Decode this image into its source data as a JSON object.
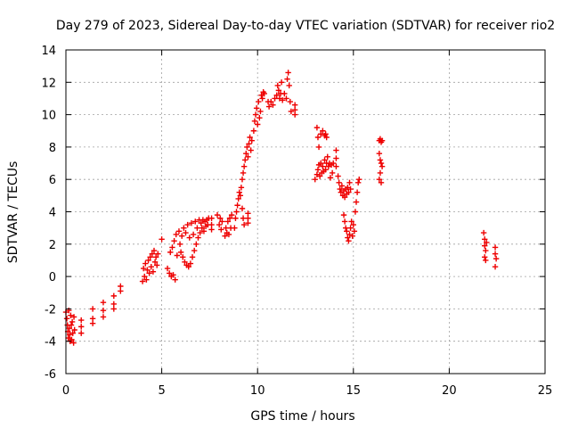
{
  "chart_data": {
    "type": "scatter",
    "title": "Day 279 of 2023, Sidereal Day-to-day VTEC variation (SDTVAR) for receiver rio2",
    "xlabel": "GPS time / hours",
    "ylabel": "SDTVAR / TECUs",
    "xlim": [
      0,
      25
    ],
    "ylim": [
      -6,
      14
    ],
    "xticks": [
      0,
      5,
      10,
      15,
      20,
      25
    ],
    "xtick_labels": [
      "0",
      "5",
      "10",
      "15",
      "20",
      "25"
    ],
    "yticks": [
      -6,
      -4,
      -2,
      0,
      2,
      4,
      6,
      8,
      10,
      12,
      14
    ],
    "ytick_labels": [
      "-6",
      "-4",
      "-2",
      "0",
      "2",
      "4",
      "6",
      "8",
      "10",
      "12",
      "14"
    ],
    "grid": true,
    "marker": "+",
    "color": "#ee0000",
    "series": [
      {
        "name": "rio2",
        "points": [
          [
            0.0,
            -2.2
          ],
          [
            0.05,
            -2.6
          ],
          [
            0.08,
            -3.0
          ],
          [
            0.1,
            -3.4
          ],
          [
            0.12,
            -3.8
          ],
          [
            0.15,
            -2.1
          ],
          [
            0.18,
            -3.2
          ],
          [
            0.2,
            -3.6
          ],
          [
            0.22,
            -4.0
          ],
          [
            0.25,
            -2.4
          ],
          [
            0.28,
            -3.0
          ],
          [
            0.3,
            -3.9
          ],
          [
            0.33,
            -2.8
          ],
          [
            0.36,
            -3.5
          ],
          [
            0.4,
            -4.1
          ],
          [
            0.42,
            -2.5
          ],
          [
            0.45,
            -3.3
          ],
          [
            0.8,
            -2.7
          ],
          [
            0.8,
            -3.1
          ],
          [
            0.8,
            -3.5
          ],
          [
            1.4,
            -2.0
          ],
          [
            1.4,
            -2.6
          ],
          [
            1.4,
            -2.9
          ],
          [
            1.95,
            -1.6
          ],
          [
            1.95,
            -2.1
          ],
          [
            1.95,
            -2.5
          ],
          [
            2.5,
            -1.2
          ],
          [
            2.5,
            -1.7
          ],
          [
            2.5,
            -2.0
          ],
          [
            2.85,
            -0.6
          ],
          [
            2.85,
            -0.9
          ],
          [
            4.0,
            -0.3
          ],
          [
            4.05,
            0.5
          ],
          [
            4.1,
            0.0
          ],
          [
            4.15,
            0.8
          ],
          [
            4.2,
            -0.2
          ],
          [
            4.25,
            0.4
          ],
          [
            4.3,
            1.0
          ],
          [
            4.35,
            0.2
          ],
          [
            4.4,
            1.2
          ],
          [
            4.45,
            0.6
          ],
          [
            4.5,
            1.4
          ],
          [
            4.55,
            0.3
          ],
          [
            4.6,
            1.6
          ],
          [
            4.65,
            0.9
          ],
          [
            4.7,
            1.2
          ],
          [
            4.75,
            0.7
          ],
          [
            4.8,
            1.4
          ],
          [
            5.0,
            2.3
          ],
          [
            5.3,
            0.5
          ],
          [
            5.4,
            0.2
          ],
          [
            5.45,
            1.5
          ],
          [
            5.5,
            0.0
          ],
          [
            5.55,
            1.8
          ],
          [
            5.6,
            0.1
          ],
          [
            5.65,
            2.2
          ],
          [
            5.7,
            -0.2
          ],
          [
            5.75,
            2.6
          ],
          [
            5.8,
            1.3
          ],
          [
            5.9,
            2.8
          ],
          [
            5.95,
            2.0
          ],
          [
            6.0,
            1.5
          ],
          [
            6.05,
            2.5
          ],
          [
            6.1,
            1.2
          ],
          [
            6.15,
            3.0
          ],
          [
            6.2,
            0.9
          ],
          [
            6.25,
            2.7
          ],
          [
            6.3,
            0.7
          ],
          [
            6.35,
            3.2
          ],
          [
            6.4,
            0.6
          ],
          [
            6.45,
            2.4
          ],
          [
            6.5,
            0.8
          ],
          [
            6.55,
            3.3
          ],
          [
            6.6,
            1.2
          ],
          [
            6.65,
            2.6
          ],
          [
            6.7,
            1.6
          ],
          [
            6.75,
            3.4
          ],
          [
            6.8,
            2.0
          ],
          [
            6.85,
            3.0
          ],
          [
            6.9,
            2.4
          ],
          [
            6.95,
            3.5
          ],
          [
            7.0,
            2.7
          ],
          [
            7.05,
            3.3
          ],
          [
            7.1,
            3.0
          ],
          [
            7.15,
            3.5
          ],
          [
            7.2,
            2.8
          ],
          [
            7.25,
            3.4
          ],
          [
            7.3,
            3.1
          ],
          [
            7.35,
            3.5
          ],
          [
            7.4,
            3.2
          ],
          [
            7.45,
            3.6
          ],
          [
            7.6,
            3.2
          ],
          [
            7.6,
            2.9
          ],
          [
            7.6,
            3.6
          ],
          [
            7.9,
            3.8
          ],
          [
            8.0,
            3.2
          ],
          [
            8.05,
            3.6
          ],
          [
            8.1,
            2.9
          ],
          [
            8.15,
            3.4
          ],
          [
            8.3,
            2.5
          ],
          [
            8.35,
            3.0
          ],
          [
            8.4,
            2.7
          ],
          [
            8.45,
            3.4
          ],
          [
            8.5,
            2.6
          ],
          [
            8.55,
            3.6
          ],
          [
            8.6,
            3.0
          ],
          [
            8.65,
            3.8
          ],
          [
            8.8,
            3.0
          ],
          [
            8.85,
            3.6
          ],
          [
            8.9,
            4.0
          ],
          [
            8.95,
            4.4
          ],
          [
            9.0,
            4.8
          ],
          [
            9.05,
            5.2
          ],
          [
            9.1,
            5.0
          ],
          [
            9.15,
            5.5
          ],
          [
            9.2,
            4.2
          ],
          [
            9.25,
            3.6
          ],
          [
            9.3,
            3.2
          ],
          [
            9.5,
            3.6
          ],
          [
            9.5,
            3.3
          ],
          [
            9.5,
            3.9
          ],
          [
            9.2,
            6.0
          ],
          [
            9.25,
            6.4
          ],
          [
            9.3,
            6.8
          ],
          [
            9.35,
            7.2
          ],
          [
            9.4,
            7.6
          ],
          [
            9.45,
            8.0
          ],
          [
            9.5,
            7.4
          ],
          [
            9.55,
            8.2
          ],
          [
            9.6,
            8.6
          ],
          [
            9.65,
            7.8
          ],
          [
            9.7,
            8.4
          ],
          [
            9.8,
            9.0
          ],
          [
            9.85,
            9.6
          ],
          [
            9.9,
            10.0
          ],
          [
            9.95,
            10.4
          ],
          [
            10.0,
            9.4
          ],
          [
            10.05,
            10.8
          ],
          [
            10.1,
            9.8
          ],
          [
            10.15,
            10.2
          ],
          [
            10.2,
            11.2
          ],
          [
            10.25,
            11.0
          ],
          [
            10.3,
            11.4
          ],
          [
            10.35,
            11.3
          ],
          [
            10.55,
            10.8
          ],
          [
            10.6,
            10.5
          ],
          [
            10.7,
            10.8
          ],
          [
            10.8,
            10.6
          ],
          [
            10.9,
            11.0
          ],
          [
            11.0,
            11.2
          ],
          [
            11.05,
            11.8
          ],
          [
            11.1,
            11.5
          ],
          [
            11.15,
            11.0
          ],
          [
            11.2,
            11.3
          ],
          [
            11.25,
            12.0
          ],
          [
            11.3,
            10.9
          ],
          [
            11.4,
            11.3
          ],
          [
            11.5,
            11.0
          ],
          [
            11.55,
            12.2
          ],
          [
            11.6,
            12.6
          ],
          [
            11.65,
            11.8
          ],
          [
            11.7,
            10.8
          ],
          [
            11.75,
            10.2
          ],
          [
            11.95,
            10.3
          ],
          [
            11.95,
            10.0
          ],
          [
            11.95,
            10.6
          ],
          [
            13.1,
            9.2
          ],
          [
            13.15,
            8.6
          ],
          [
            13.2,
            8.0
          ],
          [
            13.3,
            8.8
          ],
          [
            13.4,
            9.0
          ],
          [
            13.5,
            8.7
          ],
          [
            13.55,
            8.8
          ],
          [
            13.6,
            8.6
          ],
          [
            13.0,
            6.0
          ],
          [
            13.1,
            6.3
          ],
          [
            13.15,
            6.6
          ],
          [
            13.2,
            6.9
          ],
          [
            13.25,
            6.2
          ],
          [
            13.3,
            7.0
          ],
          [
            13.35,
            6.4
          ],
          [
            13.4,
            6.8
          ],
          [
            13.45,
            6.5
          ],
          [
            13.5,
            7.2
          ],
          [
            13.55,
            6.6
          ],
          [
            13.6,
            7.0
          ],
          [
            13.65,
            7.4
          ],
          [
            13.7,
            6.8
          ],
          [
            13.75,
            7.0
          ],
          [
            13.8,
            6.1
          ],
          [
            13.85,
            6.9
          ],
          [
            13.9,
            6.4
          ],
          [
            13.95,
            7.0
          ],
          [
            14.1,
            6.8
          ],
          [
            14.1,
            7.3
          ],
          [
            14.1,
            7.8
          ],
          [
            14.2,
            6.2
          ],
          [
            14.25,
            5.8
          ],
          [
            14.3,
            5.4
          ],
          [
            14.35,
            5.2
          ],
          [
            14.4,
            5.6
          ],
          [
            14.45,
            5.0
          ],
          [
            14.5,
            5.3
          ],
          [
            14.55,
            4.9
          ],
          [
            14.6,
            5.4
          ],
          [
            14.65,
            5.1
          ],
          [
            14.7,
            5.5
          ],
          [
            14.75,
            5.2
          ],
          [
            14.8,
            5.8
          ],
          [
            14.85,
            5.4
          ],
          [
            14.5,
            3.8
          ],
          [
            14.55,
            3.4
          ],
          [
            14.6,
            3.0
          ],
          [
            14.65,
            2.8
          ],
          [
            14.7,
            2.4
          ],
          [
            14.75,
            2.2
          ],
          [
            14.8,
            2.6
          ],
          [
            14.85,
            3.0
          ],
          [
            14.9,
            3.4
          ],
          [
            14.95,
            2.5
          ],
          [
            15.0,
            3.2
          ],
          [
            15.05,
            2.8
          ],
          [
            15.1,
            4.0
          ],
          [
            15.15,
            4.6
          ],
          [
            15.2,
            5.2
          ],
          [
            15.25,
            5.8
          ],
          [
            15.3,
            6.0
          ],
          [
            16.35,
            8.4
          ],
          [
            16.4,
            8.5
          ],
          [
            16.45,
            8.3
          ],
          [
            16.5,
            8.4
          ],
          [
            16.35,
            7.6
          ],
          [
            16.4,
            7.2
          ],
          [
            16.45,
            7.0
          ],
          [
            16.5,
            6.8
          ],
          [
            16.4,
            6.4
          ],
          [
            16.35,
            6.0
          ],
          [
            16.45,
            5.8
          ],
          [
            21.8,
            2.7
          ],
          [
            21.85,
            2.3
          ],
          [
            21.85,
            1.9
          ],
          [
            21.9,
            1.6
          ],
          [
            21.85,
            1.2
          ],
          [
            21.9,
            1.0
          ],
          [
            21.95,
            2.1
          ],
          [
            22.4,
            1.8
          ],
          [
            22.4,
            1.4
          ],
          [
            22.45,
            1.1
          ],
          [
            22.4,
            0.6
          ]
        ]
      }
    ]
  }
}
